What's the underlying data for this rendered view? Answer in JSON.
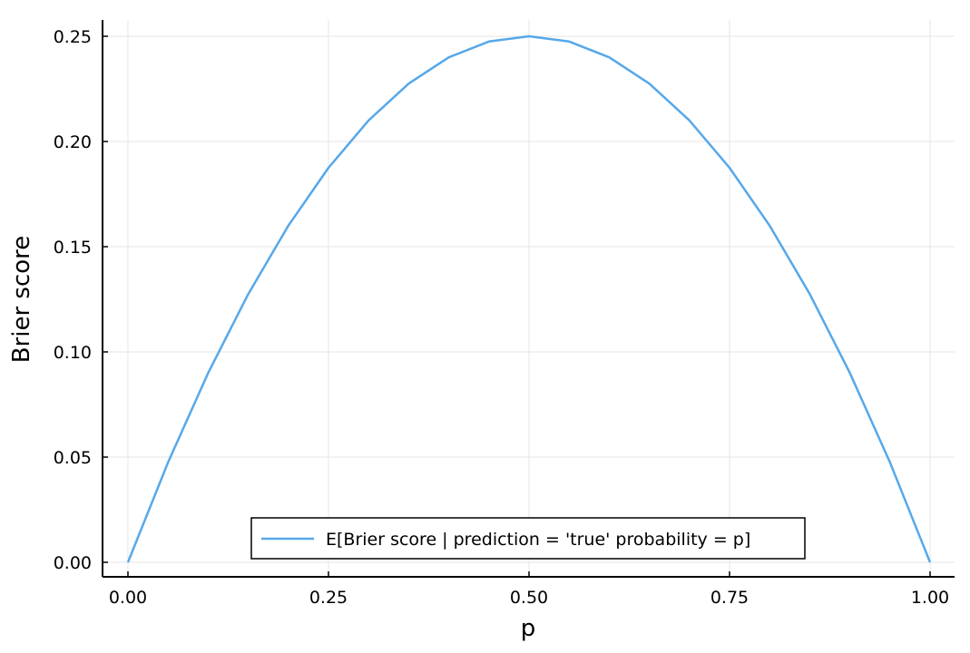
{
  "chart_data": {
    "type": "line",
    "title": "",
    "xlabel": "p",
    "ylabel": "Brier score",
    "xlim": [
      0,
      1
    ],
    "ylim": [
      0,
      0.25
    ],
    "x_ticks": [
      "0.00",
      "0.25",
      "0.50",
      "0.75",
      "1.00"
    ],
    "y_ticks": [
      "0.00",
      "0.05",
      "0.10",
      "0.15",
      "0.20",
      "0.25"
    ],
    "grid": true,
    "legend_position": "bottom-center",
    "series": [
      {
        "name": "E[Brier score | prediction = 'true' probability = p]",
        "color": "#56a8ea",
        "x": [
          0.0,
          0.05,
          0.1,
          0.15,
          0.2,
          0.25,
          0.3,
          0.35,
          0.4,
          0.45,
          0.5,
          0.55,
          0.6,
          0.65,
          0.7,
          0.75,
          0.8,
          0.85,
          0.9,
          0.95,
          1.0
        ],
        "y": [
          0.0,
          0.0475,
          0.09,
          0.1275,
          0.16,
          0.1875,
          0.21,
          0.2275,
          0.24,
          0.2475,
          0.25,
          0.2475,
          0.24,
          0.2275,
          0.21,
          0.1875,
          0.16,
          0.1275,
          0.09,
          0.0475,
          0.0
        ]
      }
    ]
  }
}
